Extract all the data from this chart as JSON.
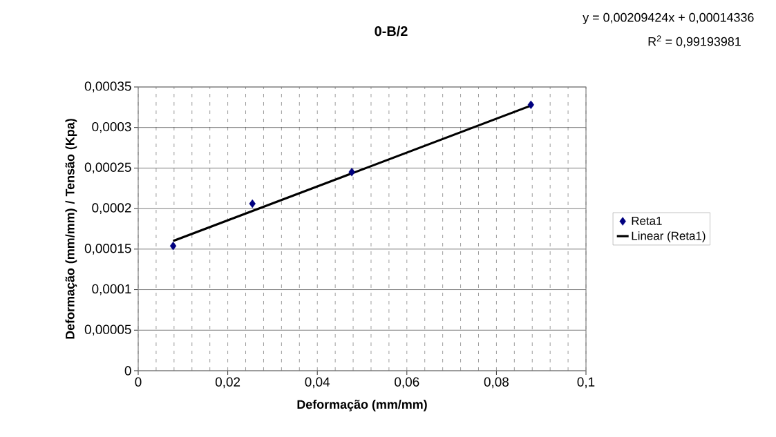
{
  "chart_data": {
    "type": "scatter",
    "title": "0-B/2",
    "xlabel": "Deformação (mm/mm)",
    "ylabel": "Deformação (mm/mm) / Tensão (Kpa)",
    "annotations": [
      "y = 0,00209424x + 0,00014336",
      "R$^{2}$ = 0,99193981"
    ],
    "series": [
      {
        "name": "Reta1",
        "color": "#000080",
        "marker": "diamond",
        "x": [
          0.0078,
          0.0255,
          0.0477,
          0.0877
        ],
        "values": [
          0.000154,
          0.000206,
          0.000245,
          0.000328
        ]
      },
      {
        "name": "Linear (Reta1)",
        "type": "line",
        "color": "#000000",
        "line_style": "solid",
        "x": [
          0.0078,
          0.0877
        ],
        "values": [
          0.00016,
          0.000327
        ]
      }
    ],
    "xlim": [
      0,
      0.1
    ],
    "xticks": [
      {
        "value": 0,
        "label": "0"
      },
      {
        "value": 0.02,
        "label": "0,02"
      },
      {
        "value": 0.04,
        "label": "0,04"
      },
      {
        "value": 0.06,
        "label": "0,06"
      },
      {
        "value": 0.08,
        "label": "0,08"
      },
      {
        "value": 0.1,
        "label": "0,1"
      }
    ],
    "ylim": [
      0,
      0.00035
    ],
    "yticks": [
      {
        "value": 0,
        "label": "0"
      },
      {
        "value": 5e-05,
        "label": "0,00005"
      },
      {
        "value": 0.0001,
        "label": "0,0001"
      },
      {
        "value": 0.00015,
        "label": "0,00015"
      },
      {
        "value": 0.0002,
        "label": "0,0002"
      },
      {
        "value": 0.00025,
        "label": "0,00025"
      },
      {
        "value": 0.0003,
        "label": "0,0003"
      },
      {
        "value": 0.00035,
        "label": "0,00035"
      }
    ],
    "grid": true,
    "legend": "right"
  }
}
